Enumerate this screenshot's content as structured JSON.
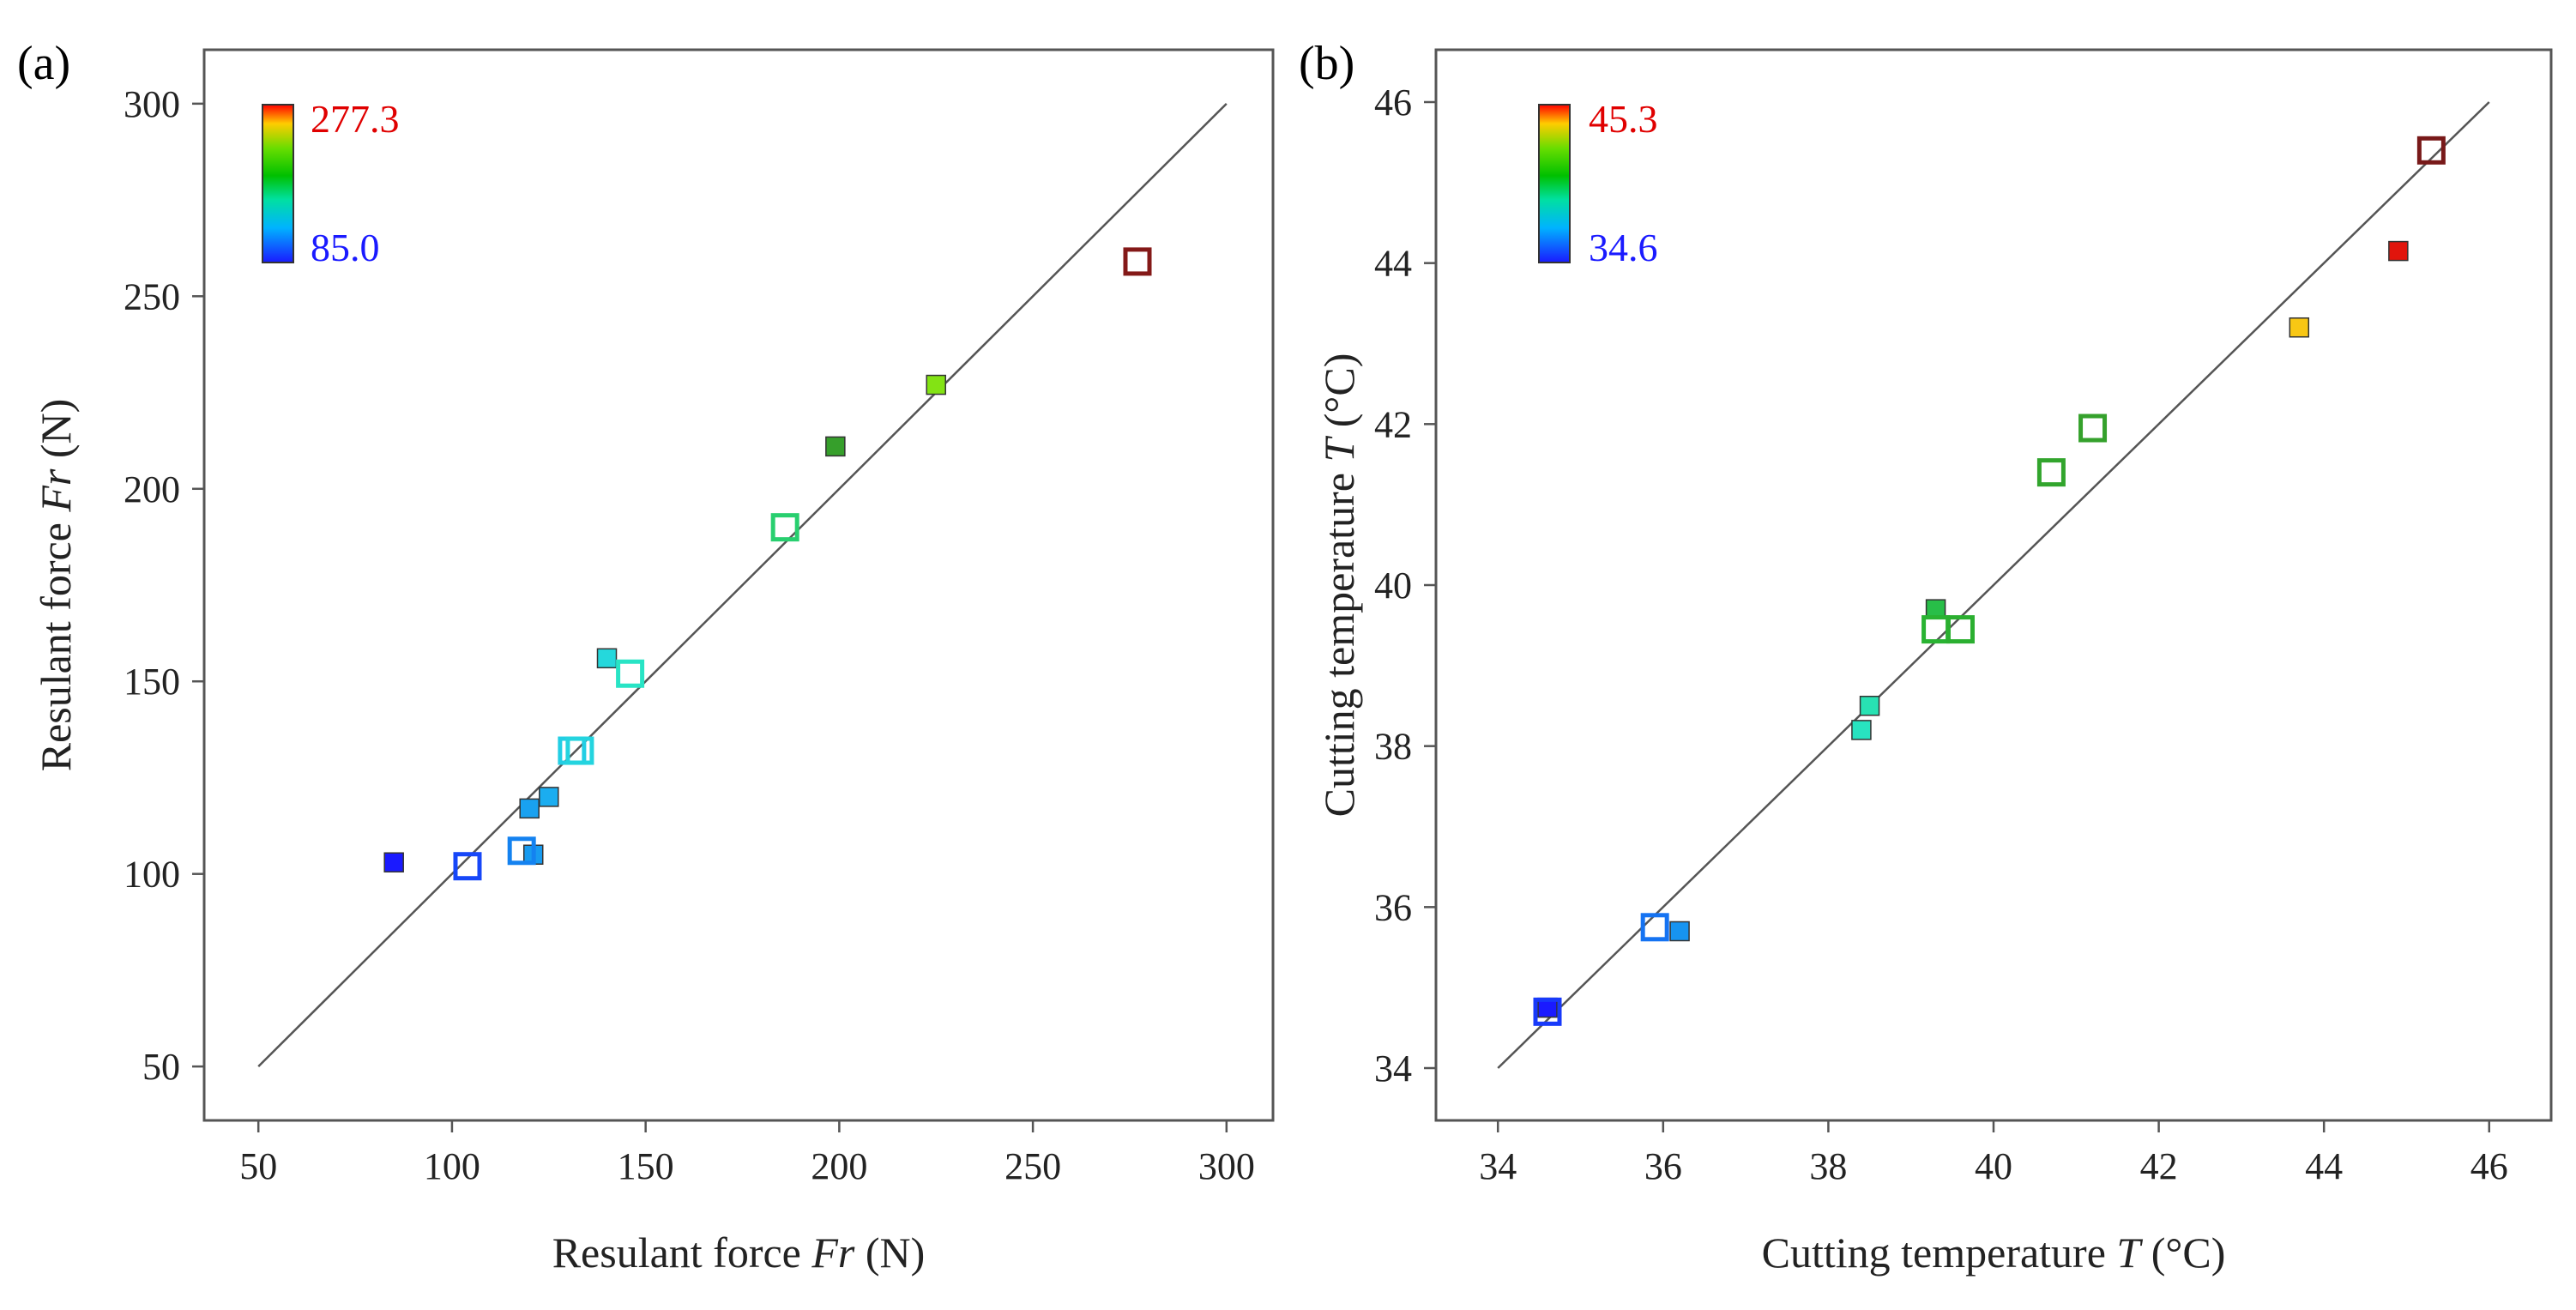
{
  "colors": {
    "frame": "#555555",
    "diagonal": "#555555",
    "colormap": [
      "#1a1aff",
      "#00b3ff",
      "#00e0c0",
      "#00c000",
      "#66dd00",
      "#ffff00",
      "#ff9900",
      "#ff0000",
      "#8b1a1a"
    ]
  },
  "chart_data": [
    {
      "type": "scatter",
      "panel_label": "(a)",
      "title": "",
      "xlabel": "Resulant force ",
      "xlabel_italic": "Fr",
      "xlabel_unit": " (N)",
      "ylabel": "Resulant force ",
      "ylabel_italic": "Fr",
      "ylabel_unit": " (N)",
      "xlim": [
        36,
        312
      ],
      "ylim": [
        36,
        314
      ],
      "xticks": [
        50,
        100,
        150,
        200,
        250,
        300
      ],
      "yticks": [
        50,
        100,
        150,
        200,
        250,
        300
      ],
      "diagonal": [
        50,
        300
      ],
      "colorbar": {
        "max_label": "277.3",
        "min_label": "85.0",
        "max_color": "#ff0000",
        "min_color": "#1a1aff",
        "placement": "top-left"
      },
      "color_range": [
        85.0,
        277.3
      ],
      "series": [
        {
          "marker": "filled-square",
          "points": [
            {
              "x": 85,
              "y": 103,
              "c": 85
            },
            {
              "x": 120,
              "y": 117,
              "c": 118
            },
            {
              "x": 125,
              "y": 120,
              "c": 122
            },
            {
              "x": 121,
              "y": 105,
              "c": 116
            },
            {
              "x": 140,
              "y": 156,
              "c": 140
            },
            {
              "x": 199,
              "y": 211,
              "c": 196
            },
            {
              "x": 225,
              "y": 227,
              "c": 226
            }
          ]
        },
        {
          "marker": "hollow-square",
          "points": [
            {
              "x": 104,
              "y": 102,
              "c": 95
            },
            {
              "x": 118,
              "y": 106,
              "c": 108
            },
            {
              "x": 131,
              "y": 132,
              "c": 135
            },
            {
              "x": 133,
              "y": 132,
              "c": 138
            },
            {
              "x": 146,
              "y": 152,
              "c": 150
            },
            {
              "x": 186,
              "y": 190,
              "c": 172
            },
            {
              "x": 277,
              "y": 259,
              "c": 285
            }
          ]
        }
      ]
    },
    {
      "type": "scatter",
      "panel_label": "(b)",
      "title": "",
      "xlabel": "Cutting temperature ",
      "xlabel_italic": "T",
      "xlabel_unit": " (°C)",
      "ylabel": "Cutting temperature ",
      "ylabel_italic": "T",
      "ylabel_unit": " (°C)",
      "xlim": [
        33.25,
        46.75
      ],
      "ylim": [
        33.35,
        46.65
      ],
      "xticks": [
        34,
        36,
        38,
        40,
        42,
        44,
        46
      ],
      "yticks": [
        34,
        36,
        38,
        40,
        42,
        44,
        46
      ],
      "diagonal": [
        34,
        46
      ],
      "colorbar": {
        "max_label": "45.3",
        "min_label": "34.6",
        "max_color": "#ff0000",
        "min_color": "#1a1aff",
        "placement": "top-left"
      },
      "color_range": [
        34.6,
        45.3
      ],
      "series": [
        {
          "marker": "filled-square",
          "points": [
            {
              "x": 34.6,
              "y": 34.75,
              "c": 34.6
            },
            {
              "x": 36.2,
              "y": 35.7,
              "c": 36.2
            },
            {
              "x": 38.4,
              "y": 38.2,
              "c": 38.3
            },
            {
              "x": 38.5,
              "y": 38.5,
              "c": 38.5
            },
            {
              "x": 39.3,
              "y": 39.7,
              "c": 39.9
            },
            {
              "x": 43.7,
              "y": 43.2,
              "c": 43.6
            },
            {
              "x": 44.9,
              "y": 44.15,
              "c": 44.9
            }
          ]
        },
        {
          "marker": "hollow-square",
          "points": [
            {
              "x": 34.6,
              "y": 34.7,
              "c": 35.0
            },
            {
              "x": 35.9,
              "y": 35.75,
              "c": 35.7
            },
            {
              "x": 39.3,
              "y": 39.45,
              "c": 40.2
            },
            {
              "x": 39.6,
              "y": 39.45,
              "c": 40.3
            },
            {
              "x": 40.7,
              "y": 41.4,
              "c": 40.6
            },
            {
              "x": 41.2,
              "y": 41.95,
              "c": 40.7
            },
            {
              "x": 45.3,
              "y": 45.4,
              "c": 46.2
            }
          ]
        }
      ]
    }
  ]
}
